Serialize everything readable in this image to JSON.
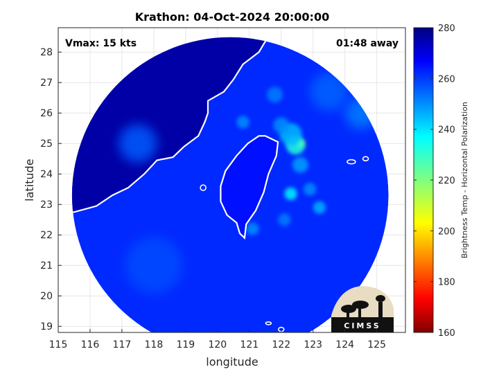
{
  "chart_data": {
    "type": "heatmap",
    "title": "Krathon: 04-Oct-2024 20:00:00",
    "xlabel": "longitude",
    "ylabel": "latitude",
    "xlim": [
      115,
      125.9
    ],
    "ylim": [
      18.8,
      28.8
    ],
    "xticks": [
      115,
      116,
      117,
      118,
      119,
      120,
      121,
      122,
      123,
      124,
      125
    ],
    "yticks": [
      19,
      20,
      21,
      22,
      23,
      24,
      25,
      26,
      27,
      28
    ],
    "grid": true,
    "annotations": {
      "vmax": "Vmax: 15 kts",
      "away": "01:48 away"
    },
    "colorbar": {
      "label": "Brightness Temp - Horizontal Polarization",
      "range": [
        160,
        280
      ],
      "ticks": [
        160,
        180,
        200,
        220,
        240,
        260,
        280
      ],
      "colormap": "jet"
    },
    "swath": {
      "center_lon": 120.4,
      "center_lat": 23.3,
      "radius_deg": 5.6
    },
    "background_temp": 262,
    "features": [
      {
        "lon": 122.6,
        "lat": 25.0,
        "temp": 210,
        "r": 0.12
      },
      {
        "lon": 122.45,
        "lat": 24.95,
        "temp": 232,
        "r": 0.3
      },
      {
        "lon": 122.3,
        "lat": 25.3,
        "temp": 245,
        "r": 0.35
      },
      {
        "lon": 122.0,
        "lat": 25.6,
        "temp": 250,
        "r": 0.25
      },
      {
        "lon": 122.3,
        "lat": 23.35,
        "temp": 238,
        "r": 0.2
      },
      {
        "lon": 122.6,
        "lat": 24.3,
        "temp": 248,
        "r": 0.25
      },
      {
        "lon": 123.2,
        "lat": 22.9,
        "temp": 246,
        "r": 0.2
      },
      {
        "lon": 122.9,
        "lat": 23.5,
        "temp": 250,
        "r": 0.2
      },
      {
        "lon": 124.5,
        "lat": 26.0,
        "temp": 252,
        "r": 0.5
      },
      {
        "lon": 123.5,
        "lat": 26.7,
        "temp": 255,
        "r": 0.6
      },
      {
        "lon": 121.8,
        "lat": 26.6,
        "temp": 252,
        "r": 0.25
      },
      {
        "lon": 121.1,
        "lat": 22.2,
        "temp": 250,
        "r": 0.2
      },
      {
        "lon": 120.8,
        "lat": 25.7,
        "temp": 250,
        "r": 0.2
      },
      {
        "lon": 122.1,
        "lat": 22.5,
        "temp": 252,
        "r": 0.2
      },
      {
        "lon": 117.5,
        "lat": 25.0,
        "temp": 256,
        "r": 0.6
      },
      {
        "lon": 118.0,
        "lat": 21.0,
        "temp": 258,
        "r": 0.9
      }
    ],
    "land_temp": 276,
    "island_temp": 265
  },
  "logo": {
    "text": "CIMSS"
  },
  "colors": {
    "land": "#0c1f7a",
    "outline_axes": "#262626",
    "coast": "#ffffff"
  }
}
